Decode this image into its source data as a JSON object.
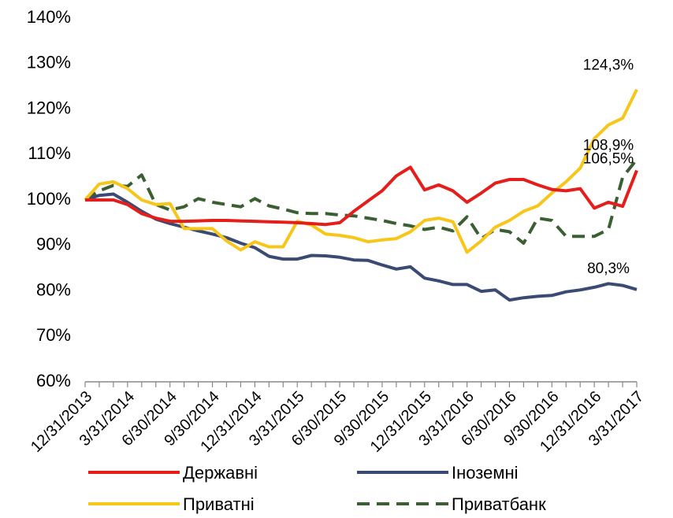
{
  "chart_data": {
    "type": "line",
    "categories": [
      "12/31/2013",
      null,
      null,
      "3/31/2014",
      null,
      null,
      "6/30/2014",
      null,
      null,
      "9/30/2014",
      null,
      null,
      "12/31/2014",
      null,
      null,
      "3/31/2015",
      null,
      null,
      "6/30/2015",
      null,
      null,
      "9/30/2015",
      null,
      null,
      "12/31/2015",
      null,
      null,
      "3/31/2016",
      null,
      null,
      "6/30/2016",
      null,
      null,
      "9/30/2016",
      null,
      null,
      "12/31/2016",
      null,
      null,
      "3/31/2017"
    ],
    "series": [
      {
        "name": "Державні",
        "color": "#e31e1b",
        "dash": false,
        "values": [
          100,
          100,
          100,
          99,
          97,
          96,
          95.3,
          95.3,
          95.4,
          95.5,
          95.5,
          95.4,
          95.3,
          95.2,
          95.1,
          95,
          94.8,
          94.6,
          95,
          97.5,
          99.8,
          102,
          105.3,
          107.2,
          102.2,
          103.3,
          102,
          99.5,
          101.5,
          103.7,
          104.5,
          104.5,
          103.3,
          102.3,
          102,
          102.5,
          98.2,
          99.5,
          98.6,
          106.5
        ],
        "value_labels": [
          null,
          null,
          null,
          null,
          null,
          null,
          null,
          null,
          null,
          null,
          null,
          null,
          null,
          null,
          null,
          null,
          null,
          null,
          null,
          null,
          null,
          null,
          null,
          null,
          null,
          null,
          null,
          null,
          null,
          null,
          null,
          null,
          null,
          null,
          null,
          null,
          null,
          null,
          null,
          "106,5%"
        ]
      },
      {
        "name": "Іноземні",
        "color": "#3b4a72",
        "dash": false,
        "values": [
          100,
          101,
          101.3,
          99.5,
          97.5,
          95.8,
          94.8,
          94,
          93.2,
          92.5,
          91.7,
          90.5,
          89.5,
          87.6,
          87,
          87,
          87.8,
          87.7,
          87.4,
          86.8,
          86.7,
          85.7,
          84.8,
          85.3,
          82.8,
          82.2,
          81.4,
          81.4,
          79.9,
          80.2,
          78,
          78.5,
          78.8,
          79,
          79.8,
          80.2,
          80.8,
          81.6,
          81.2,
          80.3
        ],
        "value_labels": [
          null,
          null,
          null,
          null,
          null,
          null,
          null,
          null,
          null,
          null,
          null,
          null,
          null,
          null,
          null,
          null,
          null,
          null,
          null,
          null,
          null,
          null,
          null,
          null,
          null,
          null,
          null,
          null,
          null,
          null,
          null,
          null,
          null,
          null,
          null,
          null,
          null,
          null,
          null,
          "80,3%"
        ]
      },
      {
        "name": "Приватні",
        "color": "#f6c61a",
        "dash": false,
        "values": [
          100,
          103.5,
          104,
          102.5,
          100,
          99,
          99.2,
          93.7,
          93.7,
          93.7,
          91,
          89,
          90.8,
          89.7,
          89.7,
          95.3,
          94.5,
          92.5,
          92.2,
          91.7,
          90.8,
          91.2,
          91.5,
          93,
          95.5,
          96,
          95.2,
          88.5,
          91,
          94,
          95.5,
          97.5,
          98.7,
          101.5,
          104,
          107,
          113.5,
          116.5,
          118,
          124.3
        ],
        "value_labels": [
          null,
          null,
          null,
          null,
          null,
          null,
          null,
          null,
          null,
          null,
          null,
          null,
          null,
          null,
          null,
          null,
          null,
          null,
          null,
          null,
          null,
          null,
          null,
          null,
          null,
          null,
          null,
          null,
          null,
          null,
          null,
          null,
          null,
          null,
          null,
          null,
          null,
          null,
          null,
          "124,3%"
        ]
      },
      {
        "name": "Приватбанк",
        "color": "#3b5e33",
        "dash": true,
        "values": [
          100,
          102,
          103.2,
          103,
          105.5,
          99,
          97.8,
          98.5,
          100.3,
          99.5,
          99,
          98.5,
          100.3,
          98.7,
          98,
          97.2,
          97,
          97,
          96.7,
          96.5,
          96,
          95.5,
          94.8,
          94.3,
          93.5,
          94,
          93.2,
          96.3,
          91.5,
          93.5,
          93,
          90.5,
          96,
          95.5,
          92,
          92,
          92,
          93.5,
          105,
          108.9
        ],
        "value_labels": [
          null,
          null,
          null,
          null,
          null,
          null,
          null,
          null,
          null,
          null,
          null,
          null,
          null,
          null,
          null,
          null,
          null,
          null,
          null,
          null,
          null,
          null,
          null,
          null,
          null,
          null,
          null,
          null,
          null,
          null,
          null,
          null,
          null,
          null,
          null,
          null,
          null,
          null,
          null,
          "108,9%"
        ]
      }
    ],
    "ylim": [
      60,
      140
    ],
    "yticks": [
      {
        "value": 60,
        "label": "60%"
      },
      {
        "value": 70,
        "label": "70%"
      },
      {
        "value": 80,
        "label": "80%"
      },
      {
        "value": 90,
        "label": "90%"
      },
      {
        "value": 100,
        "label": "100%"
      },
      {
        "value": 110,
        "label": "110%"
      },
      {
        "value": 120,
        "label": "120%"
      },
      {
        "value": 130,
        "label": "130%"
      },
      {
        "value": 140,
        "label": "140%"
      }
    ],
    "grid": false,
    "legend": "bottom"
  }
}
